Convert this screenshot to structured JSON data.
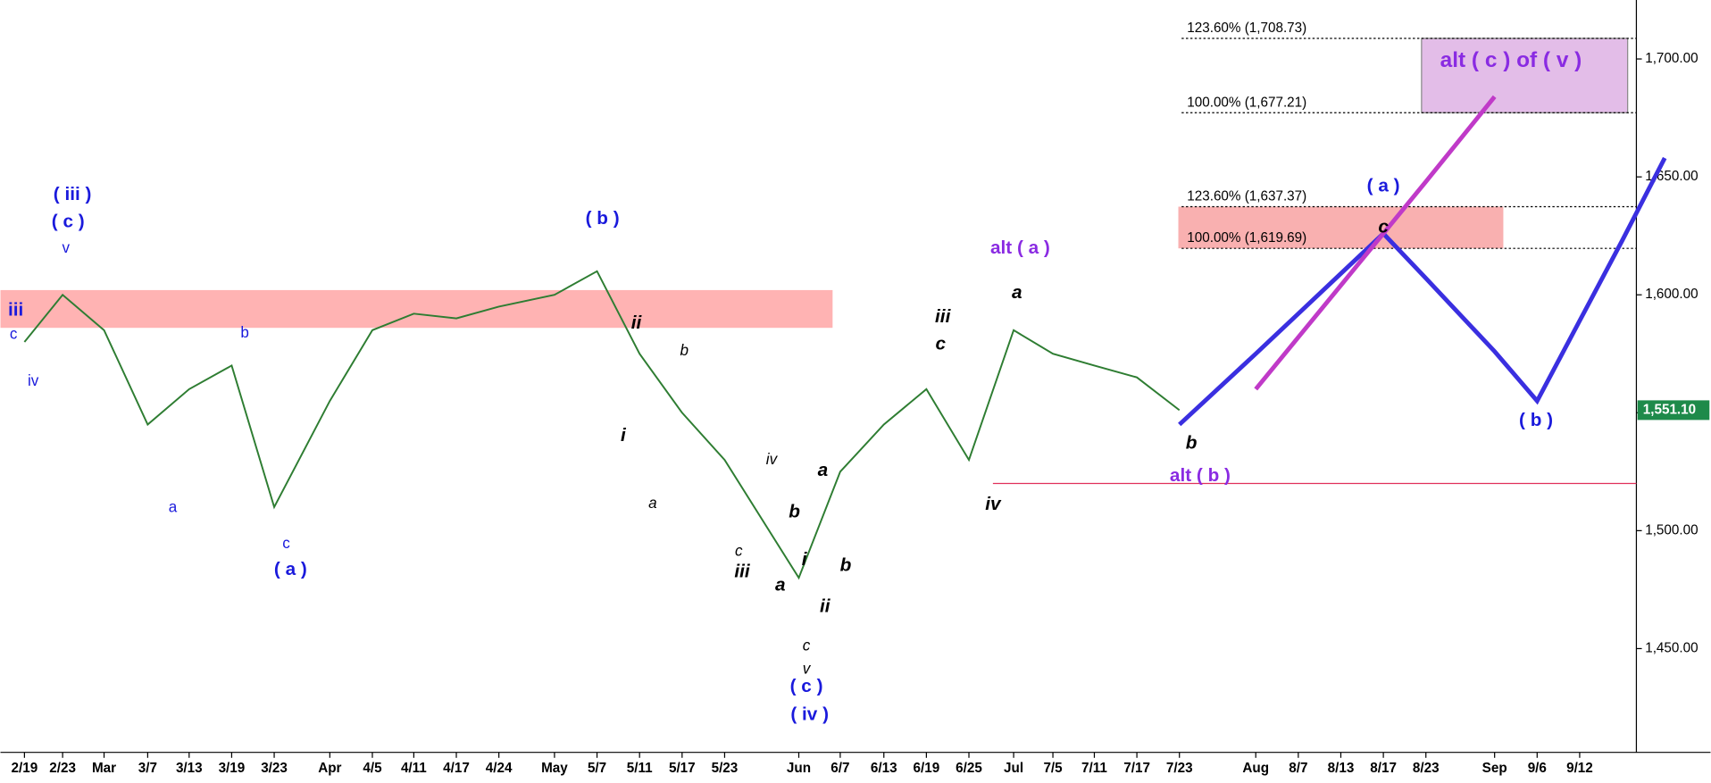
{
  "chart_data": {
    "type": "line",
    "categories": [
      "2/19",
      "2/23",
      "Mar",
      "3/7",
      "3/13",
      "3/19",
      "3/23",
      "Apr",
      "4/5",
      "4/11",
      "4/17",
      "4/24",
      "May",
      "5/7",
      "5/11",
      "5/17",
      "5/23",
      "Jun",
      "6/7",
      "6/13",
      "6/19",
      "6/25",
      "Jul",
      "7/5",
      "7/11",
      "7/17",
      "7/23",
      "Aug",
      "8/7",
      "8/13",
      "8/17",
      "8/23",
      "Sep",
      "9/6",
      "9/12",
      null,
      null
    ],
    "series": [
      {
        "name": "price",
        "color": "#2e7d32",
        "values": [
          1580,
          1600,
          1585,
          1545,
          1560,
          1570,
          1510,
          1555,
          1585,
          1592,
          1590,
          1595,
          1600,
          1610,
          1575,
          1550,
          1530,
          1480,
          1525,
          1545,
          1560,
          1530,
          1585,
          1575,
          1570,
          1565,
          1551.1,
          null,
          null,
          null,
          null,
          null,
          null,
          null,
          null,
          null,
          null
        ]
      },
      {
        "name": "projection",
        "color": "#3a2fe0",
        "values": [
          null,
          null,
          null,
          null,
          null,
          null,
          null,
          null,
          null,
          null,
          null,
          null,
          null,
          null,
          null,
          null,
          null,
          null,
          null,
          null,
          null,
          null,
          null,
          null,
          null,
          null,
          1545,
          1575,
          1592,
          1609,
          1626,
          1607,
          1576,
          1555,
          1589,
          1623,
          1658
        ]
      },
      {
        "name": "alt projection",
        "color": "#c03ac8",
        "values": [
          null,
          null,
          null,
          null,
          null,
          null,
          null,
          null,
          null,
          null,
          null,
          null,
          null,
          null,
          null,
          null,
          null,
          null,
          null,
          null,
          null,
          null,
          null,
          null,
          null,
          null,
          null,
          1560,
          1582,
          1604,
          1626,
          1648,
          1684,
          null,
          null,
          null,
          null
        ]
      }
    ],
    "ylim": [
      1406,
      1725
    ],
    "yticks": [
      {
        "value": 1450,
        "label": "1,450.00"
      },
      {
        "value": 1500,
        "label": "1,500.00"
      },
      {
        "value": 1550,
        "label": "1,550.00"
      },
      {
        "value": 1600,
        "label": "1,600.00"
      },
      {
        "value": 1650,
        "label": "1,650.00"
      },
      {
        "value": 1700,
        "label": "1,700.00"
      }
    ],
    "last_price": {
      "value": 1551.1,
      "label": "1,551.10"
    },
    "fib_levels": [
      {
        "value": 1708.73,
        "label": "123.60% (1,708.73)"
      },
      {
        "value": 1677.21,
        "label": "100.00% (1,677.21)"
      },
      {
        "value": 1637.37,
        "label": "123.60% (1,637.37)"
      },
      {
        "value": 1619.69,
        "label": "100.00% (1,619.69)"
      }
    ],
    "zones": [
      {
        "low": 1586,
        "high": 1602,
        "color": "#ffb3b3"
      },
      {
        "low": 1619.69,
        "high": 1637.37,
        "color": "#f9b0b0"
      },
      {
        "low": 1677.21,
        "high": 1708.73,
        "color": "#e3bde8"
      }
    ],
    "support_line": 1520,
    "annotations": [
      "( iii )",
      "( c )",
      "v",
      "iii",
      "c",
      "iv",
      "b",
      "a",
      "c",
      "( a )",
      "( b )",
      "( c )",
      "( iv )",
      "v",
      "c",
      "ii",
      "i",
      "b",
      "a",
      "iv",
      "c",
      "iii",
      "b",
      "a",
      "a",
      "i",
      "ii",
      "b",
      "iii",
      "c",
      "iv",
      "a",
      "b",
      "c",
      "alt ( a )",
      "alt ( b )",
      "alt ( c ) of ( v )",
      "( a )",
      "( b )"
    ]
  }
}
